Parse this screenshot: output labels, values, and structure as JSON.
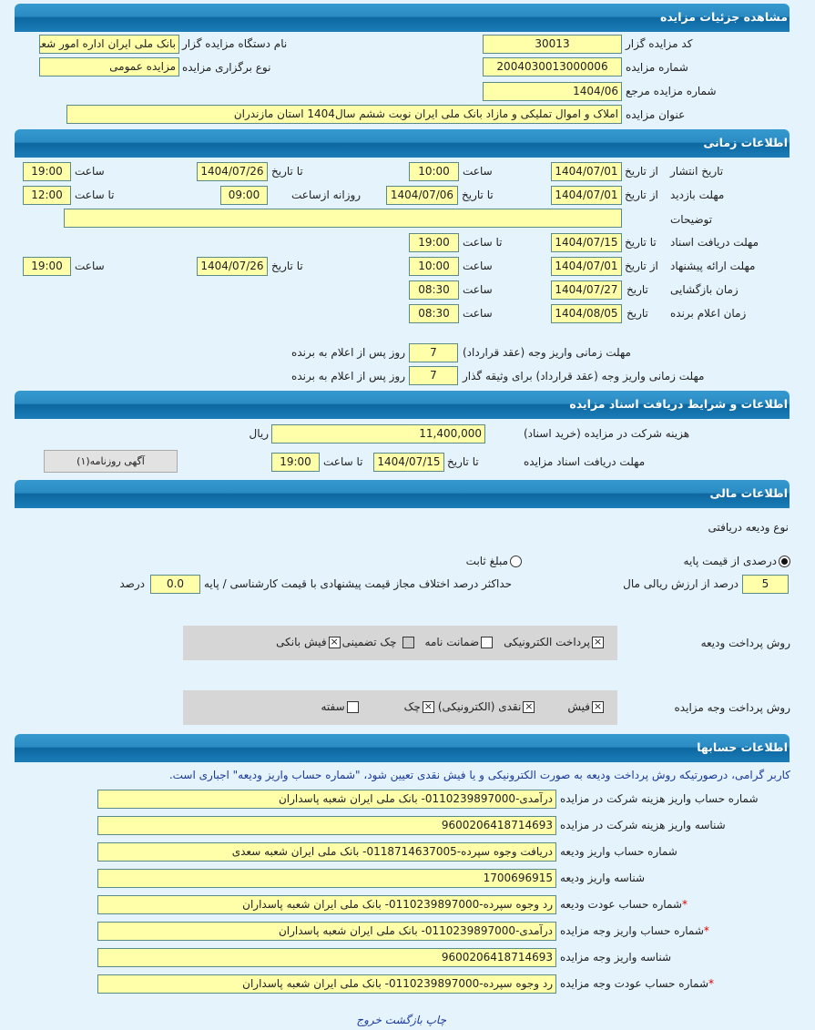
{
  "header": {
    "title": "مشاهده جزئیات مزایده"
  },
  "details": {
    "code_label": "کد مزایده گزار",
    "code": "30013",
    "org_label": "نام دستگاه مزایده گزار",
    "org": "بانک ملی ایران اداره امور شعب",
    "number_label": "شماره مزایده",
    "number": "2004030013000006",
    "type_label": "نوع برگزاری مزایده",
    "type": "مزایده عمومی",
    "ref_label": "شماره مزایده مرجع",
    "ref": "1404/06",
    "title_label": "عنوان مزایده",
    "title": "املاک و اموال تملیکی و مازاد بانک ملی ایران نوبت ششم سال1404 استان مازندران"
  },
  "timing": {
    "section_title": "اطلاعات زمانی",
    "from_date": "از تاریخ",
    "to_date": "تا تاریخ",
    "time": "ساعت",
    "to_time": "تا ساعت",
    "date": "تاریخ",
    "daily_from": "روزانه ازساعت",
    "publish": {
      "label": "تاریخ انتشار",
      "from": "1404/07/01",
      "from_time": "10:00",
      "to": "1404/07/26",
      "to_time": "19:00"
    },
    "visit": {
      "label": "مهلت بازدید",
      "from": "1404/07/01",
      "to": "1404/07/06",
      "daily_from": "09:00",
      "to_time": "12:00"
    },
    "notes": {
      "label": "توضیحات",
      "value": ""
    },
    "doc_receipt": {
      "label": "مهلت دریافت اسناد",
      "to": "1404/07/15",
      "to_time": "19:00"
    },
    "bid": {
      "label": "مهلت ارائه پیشنهاد",
      "from": "1404/07/01",
      "from_time": "10:00",
      "to": "1404/07/26",
      "to_time": "19:00"
    },
    "opening": {
      "label": "زمان بازگشایی",
      "date": "1404/07/27",
      "time": "08:30"
    },
    "winner": {
      "label": "زمان اعلام برنده",
      "date": "1404/08/05",
      "time": "08:30"
    },
    "payment_deadline": {
      "label": "مهلت زمانی واریز وجه (عقد قرارداد)",
      "value": "7",
      "suffix": "روز پس از اعلام به برنده"
    },
    "collateral_deadline": {
      "label": "مهلت زمانی واریز وجه (عقد قرارداد) برای وثیقه گذار",
      "value": "7",
      "suffix": "روز پس از اعلام به برنده"
    }
  },
  "documents": {
    "section_title": "اطلاعات و شرایط دریافت اسناد مزایده",
    "fee_label": "هزینه شرکت در مزایده (خرید اسناد)",
    "fee": "11,400,000",
    "currency": "ریال",
    "deadline_label": "مهلت دریافت اسناد مزایده",
    "to_date": "تا تاریخ",
    "date": "1404/07/15",
    "to_time": "تا ساعت",
    "time": "19:00",
    "ad_button": "آگهی روزنامه(۱)"
  },
  "financial": {
    "section_title": "اطلاعات مالی",
    "deposit_type_label": "نوع ودیعه دریافتی",
    "option_percent": "درصدی از قیمت پایه",
    "option_fixed": "مبلغ ثابت",
    "selected": "percent",
    "percent_value": "5",
    "percent_label": "درصد از ارزش ریالی مال",
    "max_diff_label": "حداکثر درصد اختلاف مجاز قیمت پیشنهادی با قیمت کارشناسی / پایه",
    "max_diff": "0.0",
    "percent_unit": "درصد",
    "deposit_method_label": "روش پرداخت ودیعه",
    "deposit_methods": [
      {
        "label": "پرداخت الکترونیکی",
        "checked": true
      },
      {
        "label": "ضمانت نامه",
        "checked": false
      },
      {
        "label": "چک تضمینی",
        "checked": false
      },
      {
        "label": "فیش بانکی",
        "checked": true
      }
    ],
    "payment_method_label": "روش پرداخت وجه مزایده",
    "payment_methods": [
      {
        "label": "فیش",
        "checked": true
      },
      {
        "label": "نقدی (الکترونیکی)",
        "checked": true
      },
      {
        "label": "چک",
        "checked": true
      },
      {
        "label": "سفته",
        "checked": false
      }
    ]
  },
  "accounts": {
    "section_title": "اطلاعات حسابها",
    "notice": "کاربر گرامی، درصورتیکه روش پرداخت ودیعه به صورت الکترونیکی و یا فیش نقدی تعیین شود، \"شماره حساب واریز ودیعه\" اجباری است.",
    "rows": [
      {
        "label": "شماره حساب واریز هزینه شرکت در مزایده",
        "value": "درآمدی-0110239897000- بانک ملی ایران شعبه پاسداران",
        "required": false
      },
      {
        "label": "شناسه واریز هزینه شرکت در مزایده",
        "value": "9600206418714693",
        "required": false
      },
      {
        "label": "شماره حساب واریز ودیعه",
        "value": "دریافت وجوه سپرده-0118714637005- بانک ملی ایران شعبه سعدی",
        "required": false
      },
      {
        "label": "شناسه واریز ودیعه",
        "value": "1700696915",
        "required": false
      },
      {
        "label": "شماره حساب عودت ودیعه",
        "value": "رد وجوه سپرده-0110239897000- بانک ملی ایران شعبه پاسداران",
        "required": true
      },
      {
        "label": "شماره حساب واریز وجه مزایده",
        "value": "درآمدی-0110239897000- بانک ملی ایران شعبه پاسداران",
        "required": true
      },
      {
        "label": "شناسه واریز وجه مزایده",
        "value": "9600206418714693",
        "required": false
      },
      {
        "label": "شماره حساب عودت وجه مزایده",
        "value": "رد وجوه سپرده-0110239897000- بانک ملی ایران شعبه پاسداران",
        "required": true
      }
    ]
  },
  "footer": {
    "print": "چاپ",
    "back": "بازگشت",
    "exit": "خروج"
  },
  "colors": {
    "header": "#1b7db8",
    "field": "#ffffaa",
    "background": "#e5f3fc"
  }
}
